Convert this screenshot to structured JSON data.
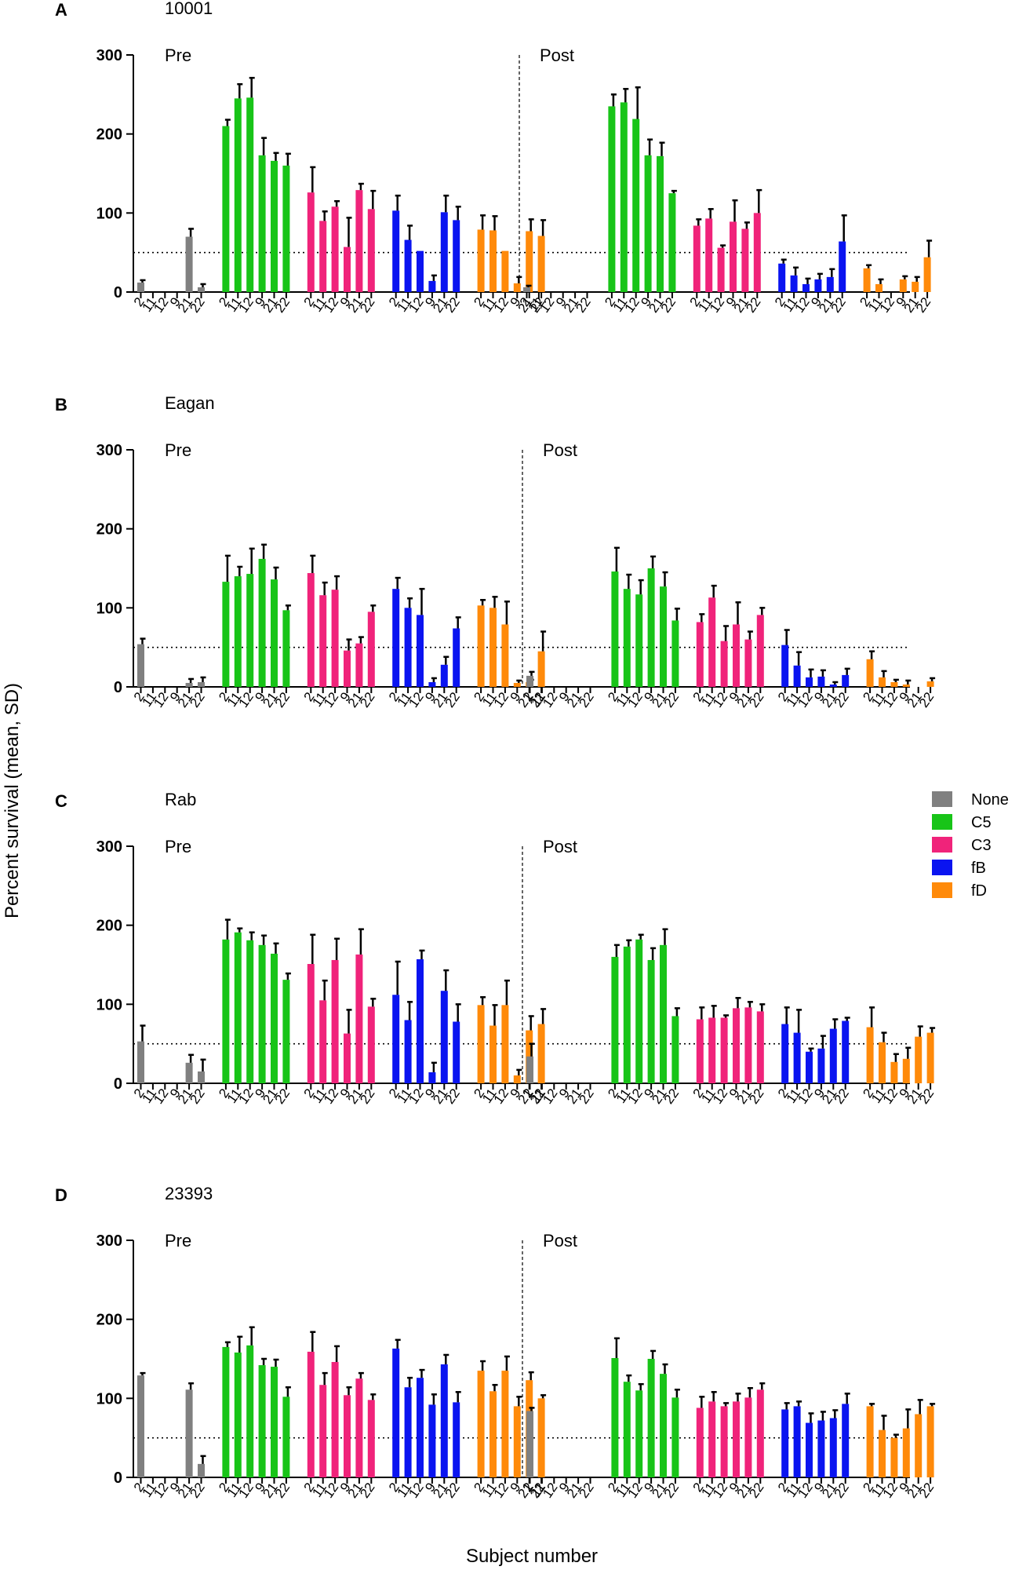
{
  "figure": {
    "ylabel": "Percent survival (mean, SD)",
    "xlabel": "Subject number"
  },
  "legend": [
    {
      "name": "None",
      "color": "#808080"
    },
    {
      "name": "C5",
      "color": "#18C418"
    },
    {
      "name": "C3",
      "color": "#F0237A"
    },
    {
      "name": "fB",
      "color": "#0A14F0"
    },
    {
      "name": "fD",
      "color": "#FF8A0A"
    }
  ],
  "chart_data": [
    {
      "type": "bar",
      "letter": "A",
      "title": "10001",
      "pre_label": "Pre",
      "post_label": "Post",
      "ylim": [
        0,
        300
      ],
      "yticks": [
        "0",
        "100",
        "200",
        "300"
      ],
      "threshold": 50,
      "subjects": [
        "2",
        "11",
        "12",
        "9",
        "21",
        "22"
      ],
      "groups": [
        "None",
        "C5",
        "C3",
        "fB",
        "fD"
      ],
      "pre": {
        "None": {
          "values": [
            12,
            0,
            0,
            0,
            70,
            6
          ],
          "sd": [
            3,
            0,
            0,
            0,
            10,
            4
          ]
        },
        "C5": {
          "values": [
            210,
            245,
            246,
            173,
            166,
            160
          ],
          "sd": [
            8,
            18,
            25,
            22,
            10,
            15
          ]
        },
        "C3": {
          "values": [
            126,
            90,
            108,
            57,
            129,
            105
          ],
          "sd": [
            32,
            12,
            7,
            37,
            8,
            23
          ]
        },
        "fB": {
          "values": [
            103,
            66,
            52,
            14,
            101,
            91
          ],
          "sd": [
            19,
            18,
            0,
            7,
            21,
            17
          ]
        },
        "fD": {
          "values": [
            79,
            78,
            52,
            11,
            77,
            71
          ],
          "sd": [
            18,
            18,
            0,
            8,
            15,
            20
          ]
        }
      },
      "post": {
        "None": {
          "values": [
            6,
            0,
            0,
            0,
            0,
            0
          ],
          "sd": [
            2,
            0,
            0,
            0,
            0,
            0
          ]
        },
        "C5": {
          "values": [
            235,
            240,
            219,
            173,
            172,
            125
          ],
          "sd": [
            15,
            17,
            40,
            20,
            17,
            3
          ]
        },
        "C3": {
          "values": [
            84,
            93,
            56,
            89,
            80,
            100
          ],
          "sd": [
            8,
            12,
            3,
            27,
            8,
            29
          ]
        },
        "fB": {
          "values": [
            36,
            21,
            10,
            16,
            19,
            64
          ],
          "sd": [
            5,
            10,
            7,
            7,
            10,
            33
          ]
        },
        "fD": {
          "values": [
            30,
            10,
            0,
            16,
            13,
            44
          ],
          "sd": [
            4,
            6,
            0,
            4,
            6,
            21
          ]
        }
      }
    },
    {
      "type": "bar",
      "letter": "B",
      "title": "Eagan",
      "pre_label": "Pre",
      "post_label": "Post",
      "ylim": [
        0,
        300
      ],
      "yticks": [
        "0",
        "100",
        "200",
        "300"
      ],
      "threshold": 50,
      "subjects": [
        "2",
        "11",
        "12",
        "9",
        "21",
        "22"
      ],
      "groups": [
        "None",
        "C5",
        "C3",
        "fB",
        "fD"
      ],
      "pre": {
        "None": {
          "values": [
            54,
            0,
            0,
            0,
            5,
            6
          ],
          "sd": [
            7,
            0,
            0,
            0,
            5,
            6
          ]
        },
        "C5": {
          "values": [
            133,
            140,
            143,
            162,
            136,
            97
          ],
          "sd": [
            33,
            12,
            32,
            18,
            15,
            6
          ]
        },
        "C3": {
          "values": [
            144,
            116,
            123,
            46,
            55,
            95
          ],
          "sd": [
            22,
            16,
            17,
            14,
            8,
            8
          ]
        },
        "fB": {
          "values": [
            124,
            100,
            91,
            6,
            28,
            74
          ],
          "sd": [
            14,
            12,
            33,
            5,
            10,
            14
          ]
        },
        "fD": {
          "values": [
            103,
            100,
            79,
            5,
            6,
            45
          ],
          "sd": [
            7,
            14,
            29,
            3,
            3,
            25
          ]
        }
      },
      "post": {
        "None": {
          "values": [
            14,
            0,
            0,
            0,
            0,
            0
          ],
          "sd": [
            5,
            0,
            0,
            0,
            0,
            0
          ]
        },
        "C5": {
          "values": [
            146,
            124,
            117,
            150,
            127,
            84
          ],
          "sd": [
            30,
            18,
            18,
            15,
            18,
            15
          ]
        },
        "C3": {
          "values": [
            82,
            113,
            58,
            79,
            60,
            91
          ],
          "sd": [
            10,
            15,
            19,
            28,
            10,
            9
          ]
        },
        "fB": {
          "values": [
            53,
            27,
            12,
            13,
            3,
            15
          ],
          "sd": [
            19,
            17,
            10,
            8,
            3,
            8
          ]
        },
        "fD": {
          "values": [
            35,
            12,
            6,
            3,
            0,
            7
          ],
          "sd": [
            10,
            8,
            3,
            5,
            0,
            4
          ]
        }
      }
    },
    {
      "type": "bar",
      "letter": "C",
      "title": "Rab",
      "pre_label": "Pre",
      "post_label": "Post",
      "ylim": [
        0,
        300
      ],
      "yticks": [
        "0",
        "100",
        "200",
        "300"
      ],
      "threshold": 50,
      "subjects": [
        "2",
        "11",
        "12",
        "9",
        "21",
        "22"
      ],
      "groups": [
        "None",
        "C5",
        "C3",
        "fB",
        "fD"
      ],
      "pre": {
        "None": {
          "values": [
            53,
            0,
            0,
            0,
            26,
            15
          ],
          "sd": [
            20,
            0,
            0,
            0,
            10,
            15
          ]
        },
        "C5": {
          "values": [
            182,
            191,
            181,
            175,
            164,
            131
          ],
          "sd": [
            25,
            5,
            10,
            12,
            13,
            8
          ]
        },
        "C3": {
          "values": [
            151,
            105,
            156,
            63,
            163,
            97
          ],
          "sd": [
            37,
            25,
            27,
            30,
            32,
            10
          ]
        },
        "fB": {
          "values": [
            112,
            80,
            157,
            14,
            117,
            78
          ],
          "sd": [
            42,
            23,
            11,
            12,
            26,
            22
          ]
        },
        "fD": {
          "values": [
            99,
            73,
            99,
            10,
            67,
            75
          ],
          "sd": [
            10,
            26,
            31,
            7,
            18,
            19
          ]
        }
      },
      "post": {
        "None": {
          "values": [
            34,
            0,
            0,
            0,
            0,
            0
          ],
          "sd": [
            16,
            0,
            0,
            0,
            0,
            0
          ]
        },
        "C5": {
          "values": [
            160,
            173,
            182,
            156,
            175,
            85
          ],
          "sd": [
            15,
            8,
            6,
            15,
            20,
            10
          ]
        },
        "C3": {
          "values": [
            81,
            83,
            83,
            95,
            96,
            91
          ],
          "sd": [
            15,
            15,
            3,
            13,
            7,
            9
          ]
        },
        "fB": {
          "values": [
            75,
            64,
            40,
            44,
            69,
            79
          ],
          "sd": [
            21,
            29,
            4,
            16,
            12,
            4
          ]
        },
        "fD": {
          "values": [
            71,
            52,
            27,
            31,
            59,
            64
          ],
          "sd": [
            25,
            12,
            10,
            14,
            13,
            6
          ]
        }
      }
    },
    {
      "type": "bar",
      "letter": "D",
      "title": "23393",
      "pre_label": "Pre",
      "post_label": "Post",
      "ylim": [
        0,
        300
      ],
      "yticks": [
        "0",
        "100",
        "200",
        "300"
      ],
      "threshold": 50,
      "subjects": [
        "2",
        "11",
        "12",
        "9",
        "21",
        "22"
      ],
      "groups": [
        "None",
        "C5",
        "C3",
        "fB",
        "fD"
      ],
      "pre": {
        "None": {
          "values": [
            129,
            0,
            0,
            0,
            111,
            17
          ],
          "sd": [
            3,
            0,
            0,
            0,
            8,
            10
          ]
        },
        "C5": {
          "values": [
            165,
            158,
            167,
            142,
            140,
            102
          ],
          "sd": [
            6,
            20,
            23,
            8,
            9,
            12
          ]
        },
        "C3": {
          "values": [
            159,
            117,
            146,
            104,
            125,
            98
          ],
          "sd": [
            25,
            15,
            20,
            10,
            7,
            7
          ]
        },
        "fB": {
          "values": [
            163,
            114,
            126,
            92,
            143,
            95
          ],
          "sd": [
            11,
            12,
            10,
            13,
            12,
            13
          ]
        },
        "fD": {
          "values": [
            135,
            109,
            135,
            90,
            123,
            100
          ],
          "sd": [
            12,
            8,
            18,
            12,
            10,
            4
          ]
        }
      },
      "post": {
        "None": {
          "values": [
            84,
            0,
            0,
            0,
            0,
            0
          ],
          "sd": [
            4,
            0,
            0,
            0,
            0,
            0
          ]
        },
        "C5": {
          "values": [
            151,
            121,
            110,
            150,
            131,
            101
          ],
          "sd": [
            25,
            8,
            8,
            10,
            12,
            10
          ]
        },
        "C3": {
          "values": [
            88,
            96,
            90,
            96,
            101,
            111
          ],
          "sd": [
            14,
            12,
            4,
            10,
            12,
            8
          ]
        },
        "fB": {
          "values": [
            86,
            90,
            69,
            72,
            75,
            93
          ],
          "sd": [
            8,
            6,
            12,
            11,
            10,
            13
          ]
        },
        "fD": {
          "values": [
            90,
            60,
            50,
            62,
            80,
            90
          ],
          "sd": [
            3,
            18,
            4,
            24,
            18,
            3
          ]
        }
      }
    }
  ]
}
